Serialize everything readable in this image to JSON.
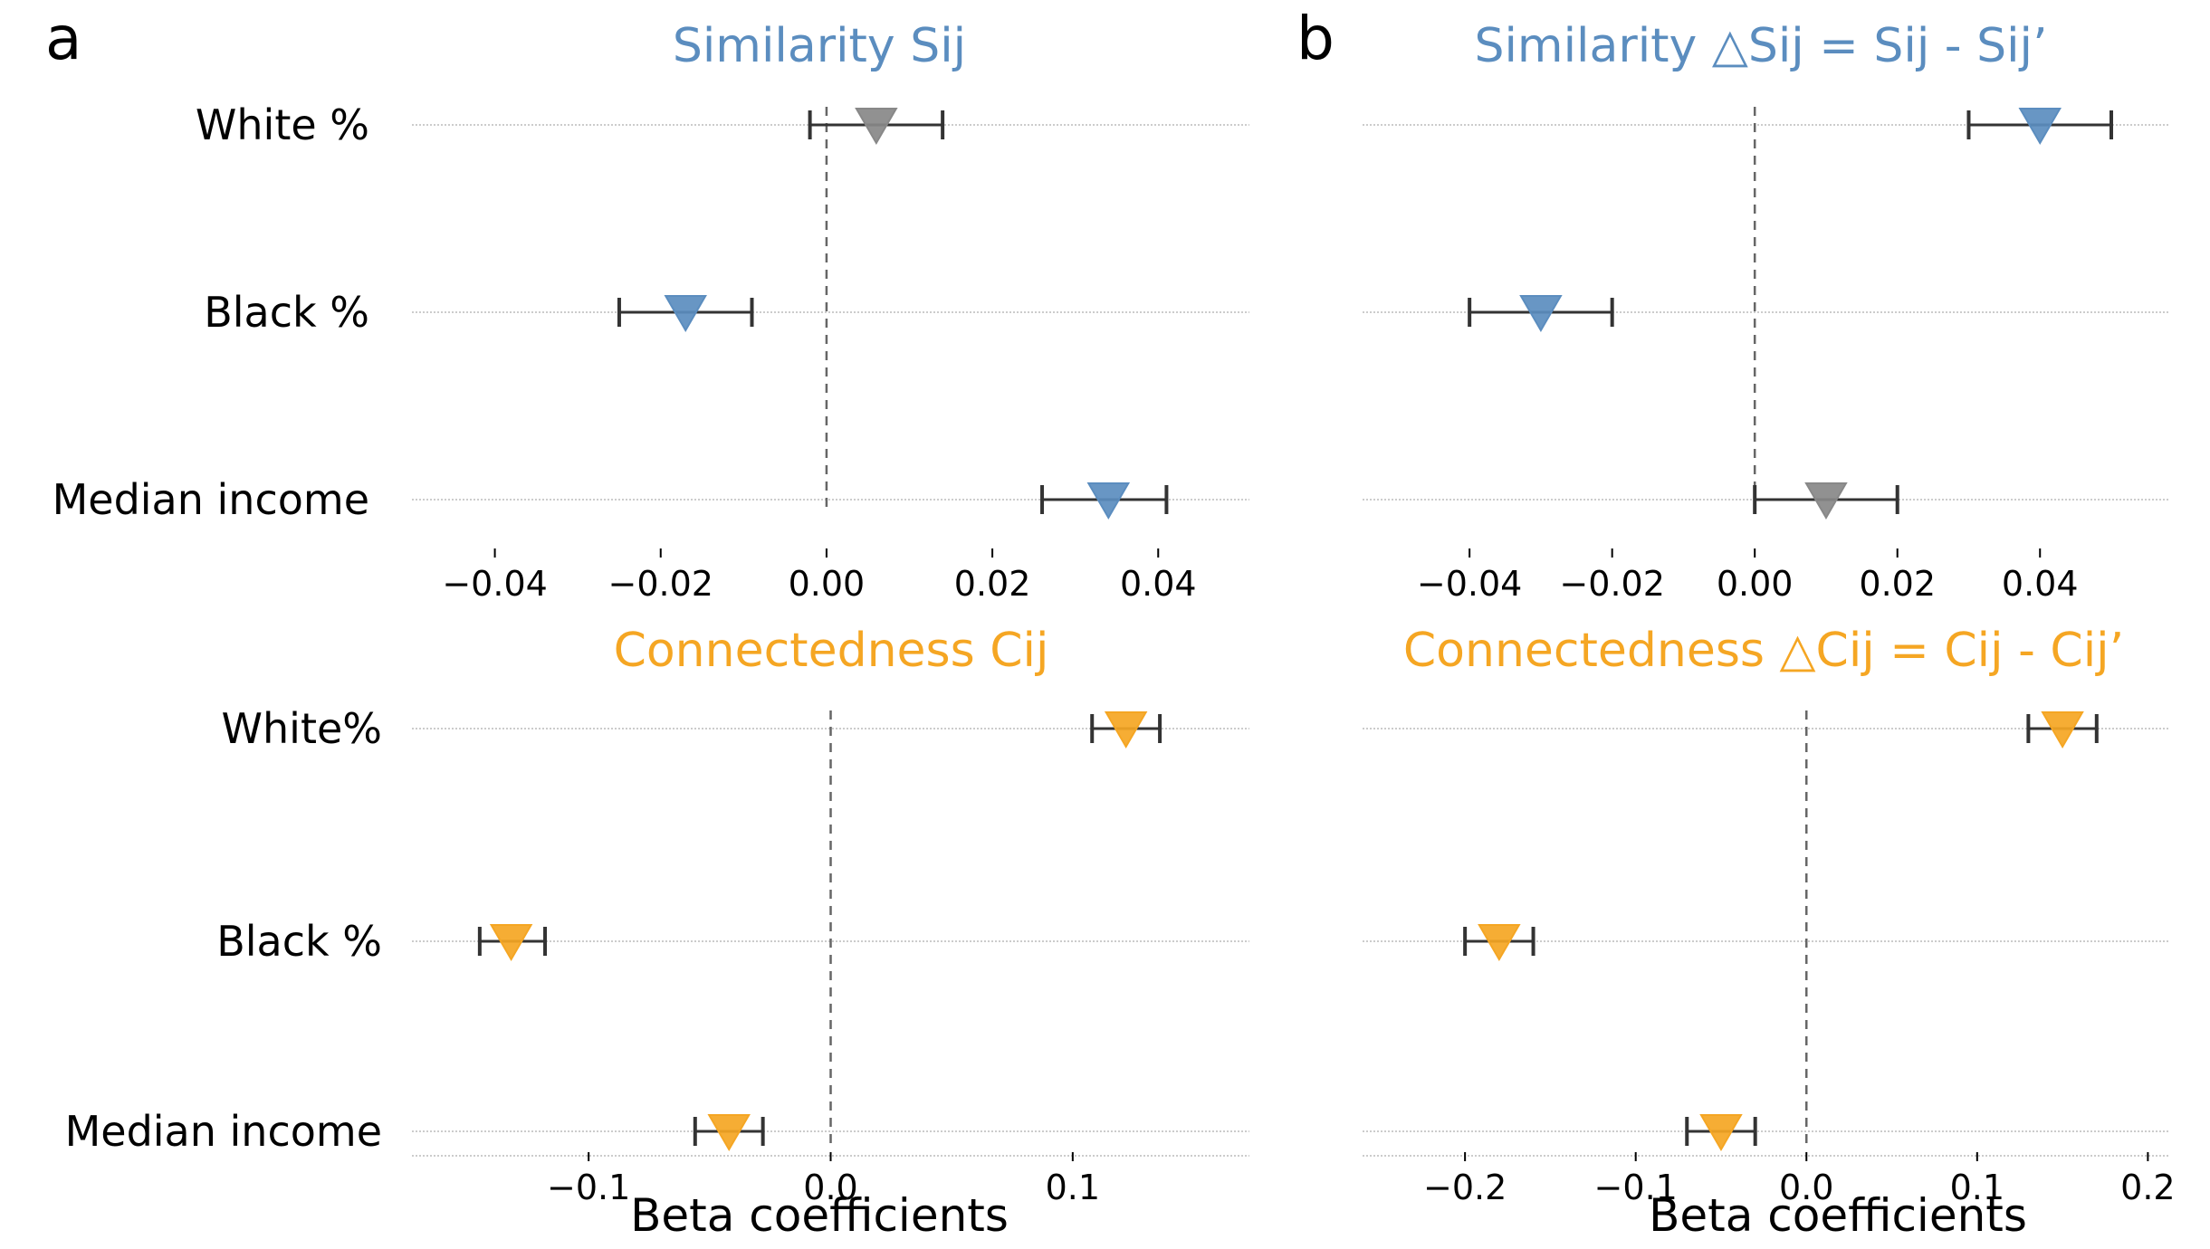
{
  "figure": {
    "xlabel": "Beta coefficients",
    "colors": {
      "significant_similarity": "#5B8DBF",
      "not_significant": "#888888",
      "connectedness": "#F5A623",
      "similarity_title": "#5B8DBF",
      "connectedness_title": "#F5A623",
      "errorbar": "#333333",
      "gridline": "#cccccc",
      "zero_line": "#666666"
    }
  },
  "chart_data": [
    {
      "id": "a-top",
      "panel_letter": "a",
      "type": "scatter",
      "title": "Similarity Sij",
      "title_color": "similarity",
      "categories": [
        "White %",
        "Black %",
        "Median income"
      ],
      "values": [
        0.006,
        -0.017,
        0.034
      ],
      "ci_low": [
        -0.002,
        -0.025,
        0.026
      ],
      "ci_high": [
        0.014,
        -0.009,
        0.041
      ],
      "point_colors": [
        "#888888",
        "#5B8DBF",
        "#5B8DBF"
      ],
      "xlim": [
        -0.05,
        0.051
      ],
      "xticks": [
        -0.04,
        -0.02,
        0.0,
        0.02,
        0.04
      ],
      "xtick_labels": [
        "−0.04",
        "−0.02",
        "0.00",
        "0.02",
        "0.04"
      ],
      "xlabel": ""
    },
    {
      "id": "b-top",
      "panel_letter": "b",
      "type": "scatter",
      "title": "Similarity △Sij = Sij - Sij’",
      "title_color": "similarity",
      "categories": [
        "",
        "",
        ""
      ],
      "values": [
        0.04,
        -0.03,
        0.01
      ],
      "ci_low": [
        0.03,
        -0.04,
        0.0
      ],
      "ci_high": [
        0.05,
        -0.02,
        0.02
      ],
      "point_colors": [
        "#5B8DBF",
        "#5B8DBF",
        "#888888"
      ],
      "xlim": [
        -0.055,
        0.058
      ],
      "xticks": [
        -0.04,
        -0.02,
        0.0,
        0.02,
        0.04
      ],
      "xtick_labels": [
        "−0.04",
        "−0.02",
        "0.00",
        "0.02",
        "0.04"
      ],
      "xlabel": ""
    },
    {
      "id": "a-bottom",
      "panel_letter": "",
      "type": "scatter",
      "title": "Connectedness Cij",
      "title_color": "connectedness",
      "categories": [
        "White%",
        "Black %",
        "Median income"
      ],
      "values": [
        0.122,
        -0.132,
        -0.042
      ],
      "ci_low": [
        0.108,
        -0.145,
        -0.056
      ],
      "ci_high": [
        0.136,
        -0.118,
        -0.028
      ],
      "point_colors": [
        "#F5A623",
        "#F5A623",
        "#F5A623"
      ],
      "xlim": [
        -0.173,
        0.173
      ],
      "xticks": [
        -0.1,
        0.0,
        0.1
      ],
      "xtick_labels": [
        "−0.1",
        "0.0",
        "0.1"
      ],
      "xlabel": "Beta coefficients"
    },
    {
      "id": "b-bottom",
      "panel_letter": "",
      "type": "scatter",
      "title": "Connectedness △Cij = Cij - Cij’",
      "title_color": "connectedness",
      "categories": [
        "",
        "",
        ""
      ],
      "values": [
        0.15,
        -0.18,
        -0.05
      ],
      "ci_low": [
        0.13,
        -0.2,
        -0.07
      ],
      "ci_high": [
        0.17,
        -0.16,
        -0.03
      ],
      "point_colors": [
        "#F5A623",
        "#F5A623",
        "#F5A623"
      ],
      "xlim": [
        -0.26,
        0.212
      ],
      "xticks": [
        -0.2,
        -0.1,
        0.0,
        0.1,
        0.2
      ],
      "xtick_labels": [
        "−0.2",
        "−0.1",
        "0.0",
        "0.1",
        "0.2"
      ],
      "xlabel": "Beta coefficients"
    }
  ]
}
